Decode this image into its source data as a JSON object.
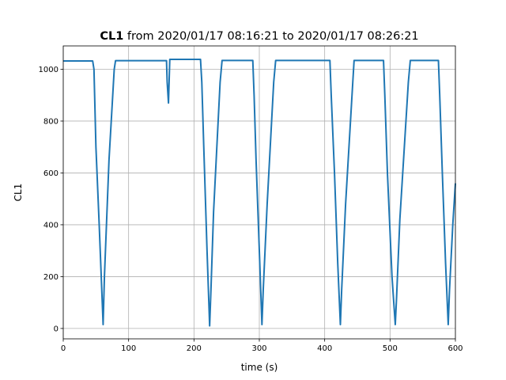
{
  "chart_data": {
    "type": "line",
    "title_bold": "CL1",
    "title_rest": " from 2020/01/17 08:16:21 to 2020/01/17 08:26:21",
    "xlabel": "time (s)",
    "ylabel": "CL1",
    "xlim": [
      0,
      600
    ],
    "ylim": [
      -40,
      1090
    ],
    "xticks": [
      0,
      100,
      200,
      300,
      400,
      500,
      600
    ],
    "yticks": [
      0,
      200,
      400,
      600,
      800,
      1000
    ],
    "grid": true,
    "series_color": "#1f77b4",
    "series": [
      {
        "x": [
          0,
          45,
          47,
          48,
          50,
          55,
          60,
          61,
          63,
          70,
          78,
          80,
          158,
          159,
          161,
          163,
          205,
          210,
          212,
          215,
          220,
          224,
          226,
          230,
          240,
          243,
          290,
          292,
          295,
          300,
          304,
          306,
          312,
          322,
          325,
          408,
          410,
          415,
          420,
          424,
          426,
          432,
          443,
          445,
          490,
          492,
          496,
          503,
          508,
          510,
          515,
          528,
          531,
          574,
          576,
          580,
          585,
          589,
          591,
          596,
          600
        ],
        "y": [
          1032,
          1032,
          1000,
          900,
          700,
          400,
          80,
          15,
          200,
          650,
          1000,
          1033,
          1033,
          950,
          870,
          1038,
          1038,
          1038,
          950,
          700,
          300,
          10,
          150,
          450,
          950,
          1034,
          1034,
          900,
          650,
          300,
          15,
          150,
          480,
          950,
          1034,
          1034,
          900,
          600,
          250,
          15,
          150,
          480,
          950,
          1034,
          1034,
          900,
          600,
          200,
          15,
          120,
          420,
          950,
          1034,
          1034,
          900,
          600,
          250,
          15,
          150,
          400,
          560
        ]
      }
    ]
  }
}
